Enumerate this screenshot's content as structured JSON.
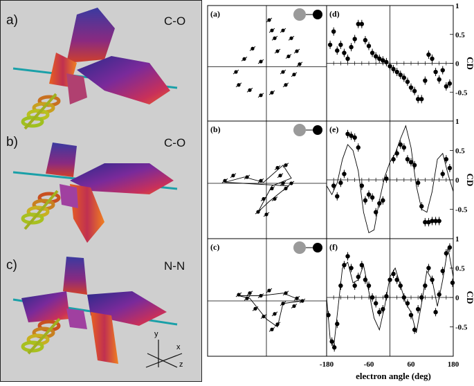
{
  "left_panels": [
    {
      "letter": "a)",
      "molecule": "C-O"
    },
    {
      "letter": "b)",
      "molecule": "C-O"
    },
    {
      "letter": "c)",
      "molecule": "N-N"
    }
  ],
  "axes_glyph": {
    "y": "y",
    "x": "x",
    "z": "z"
  },
  "right_panels": {
    "polar_labels": [
      "(a)",
      "(b)",
      "(c)"
    ],
    "cd_labels": [
      "(d)",
      "(e)",
      "(f)"
    ],
    "cd_axis_title": "CD",
    "x_axis_title": "electron angle (deg)",
    "x_ticks": [
      "-180",
      "-60",
      "60",
      "180"
    ],
    "y_ticks": [
      "1",
      "0.5",
      "0",
      "-0.5"
    ]
  },
  "chart_data": [
    {
      "panel": "(d)",
      "type": "scatter",
      "xlabel": "electron angle (deg)",
      "ylabel": "CD",
      "xlim": [
        -180,
        180
      ],
      "ylim": [
        -1,
        1
      ],
      "series": [
        {
          "points": [
            [
              -170,
              0.32
            ],
            [
              -160,
              0.55
            ],
            [
              -150,
              0.22
            ],
            [
              -140,
              0.32
            ],
            [
              -130,
              0.18
            ],
            [
              -120,
              0.08
            ],
            [
              -110,
              0.28
            ],
            [
              -100,
              0.42
            ],
            [
              -90,
              0.68
            ],
            [
              -80,
              0.68
            ],
            [
              -70,
              0.4
            ],
            [
              -60,
              0.3
            ],
            [
              -50,
              0.18
            ],
            [
              -40,
              0.12
            ],
            [
              -30,
              0.08
            ],
            [
              -20,
              0.05
            ],
            [
              -10,
              0.02
            ],
            [
              0,
              -0.05
            ],
            [
              10,
              -0.1
            ],
            [
              20,
              -0.15
            ],
            [
              30,
              -0.2
            ],
            [
              40,
              -0.25
            ],
            [
              50,
              -0.32
            ],
            [
              60,
              -0.42
            ],
            [
              70,
              -0.48
            ],
            [
              80,
              -0.62
            ],
            [
              90,
              -0.62
            ],
            [
              100,
              -0.3
            ],
            [
              110,
              0.15
            ],
            [
              120,
              0.08
            ],
            [
              130,
              -0.15
            ],
            [
              140,
              -0.28
            ],
            [
              150,
              -0.12
            ],
            [
              160,
              -0.4
            ],
            [
              170,
              -0.35
            ]
          ]
        },
        {
          "name": "",
          "points": []
        }
      ]
    },
    {
      "panel": "(e)",
      "type": "scatter",
      "xlabel": "electron angle (deg)",
      "ylabel": "CD",
      "xlim": [
        -180,
        180
      ],
      "ylim": [
        -1,
        1
      ],
      "series": [
        {
          "points": [
            [
              -160,
              -0.1
            ],
            [
              -150,
              -0.28
            ],
            [
              -140,
              -0.05
            ],
            [
              -130,
              0.1
            ],
            [
              -120,
              0.78
            ],
            [
              -110,
              0.75
            ],
            [
              -100,
              0.72
            ],
            [
              -90,
              0.55
            ],
            [
              -80,
              -0.1
            ],
            [
              -70,
              -0.35
            ],
            [
              -60,
              -0.25
            ],
            [
              -50,
              -0.3
            ],
            [
              -40,
              -0.55
            ],
            [
              -30,
              -0.4
            ],
            [
              -20,
              -0.35
            ],
            [
              -10,
              0.02
            ],
            [
              10,
              0.35
            ],
            [
              20,
              0.45
            ],
            [
              30,
              0.6
            ],
            [
              40,
              0.55
            ],
            [
              50,
              0.35
            ],
            [
              60,
              0.3
            ],
            [
              70,
              0.25
            ],
            [
              80,
              -0.05
            ],
            [
              90,
              -0.45
            ],
            [
              100,
              -0.72
            ],
            [
              110,
              -0.72
            ],
            [
              120,
              -0.7
            ],
            [
              130,
              -0.7
            ],
            [
              140,
              -0.7
            ],
            [
              150,
              0.1
            ],
            [
              160,
              0.35
            ],
            [
              170,
              0.2
            ]
          ]
        },
        {
          "points": [
            [
              -180,
              -0.1
            ],
            [
              -165,
              -0.25
            ],
            [
              -150,
              -0.05
            ],
            [
              -135,
              0.35
            ],
            [
              -120,
              0.6
            ],
            [
              -105,
              0.5
            ],
            [
              -90,
              0.15
            ],
            [
              -75,
              -0.55
            ],
            [
              -60,
              -0.9
            ],
            [
              -45,
              -0.85
            ],
            [
              -30,
              -0.35
            ],
            [
              -15,
              0.05
            ],
            [
              0,
              0.3
            ],
            [
              15,
              0.45
            ],
            [
              30,
              0.7
            ],
            [
              45,
              0.92
            ],
            [
              60,
              0.55
            ],
            [
              75,
              -0.1
            ],
            [
              90,
              -0.5
            ],
            [
              105,
              -0.55
            ],
            [
              120,
              -0.2
            ],
            [
              135,
              0.35
            ],
            [
              150,
              0.45
            ],
            [
              165,
              0.1
            ],
            [
              180,
              -0.2
            ]
          ]
        }
      ]
    },
    {
      "panel": "(f)",
      "type": "scatter",
      "xlabel": "electron angle (deg)",
      "ylabel": "CD",
      "xlim": [
        -180,
        180
      ],
      "ylim": [
        -1,
        1
      ],
      "series": [
        {
          "points": [
            [
              -175,
              -0.3
            ],
            [
              -165,
              -0.75
            ],
            [
              -158,
              -0.85
            ],
            [
              -150,
              -0.45
            ],
            [
              -140,
              0.2
            ],
            [
              -130,
              0.55
            ],
            [
              -120,
              0.7
            ],
            [
              -110,
              0.5
            ],
            [
              -100,
              0.2
            ],
            [
              -90,
              0.35
            ],
            [
              -80,
              0.55
            ],
            [
              -70,
              0.3
            ],
            [
              -60,
              0.2
            ],
            [
              -50,
              0.0
            ],
            [
              -40,
              -0.1
            ],
            [
              -30,
              -0.25
            ],
            [
              -20,
              -0.2
            ],
            [
              -10,
              0.02
            ],
            [
              0,
              0.3
            ],
            [
              10,
              0.4
            ],
            [
              20,
              0.3
            ],
            [
              30,
              0.2
            ],
            [
              40,
              0.0
            ],
            [
              50,
              -0.1
            ],
            [
              60,
              -0.3
            ],
            [
              70,
              -0.55
            ],
            [
              80,
              -0.2
            ],
            [
              90,
              0.0
            ],
            [
              100,
              0.2
            ],
            [
              110,
              0.5
            ],
            [
              120,
              0.3
            ],
            [
              130,
              -0.25
            ],
            [
              140,
              0.05
            ],
            [
              150,
              0.45
            ],
            [
              160,
              0.75
            ],
            [
              170,
              0.85
            ],
            [
              178,
              0.25
            ]
          ]
        },
        {
          "points": [
            [
              -180,
              0.0
            ],
            [
              -170,
              -0.7
            ],
            [
              -160,
              -0.85
            ],
            [
              -150,
              -0.3
            ],
            [
              -135,
              0.5
            ],
            [
              -120,
              0.6
            ],
            [
              -105,
              0.25
            ],
            [
              -90,
              0.3
            ],
            [
              -75,
              0.55
            ],
            [
              -60,
              0.1
            ],
            [
              -45,
              -0.35
            ],
            [
              -30,
              -0.55
            ],
            [
              -15,
              -0.15
            ],
            [
              0,
              0.35
            ],
            [
              15,
              0.5
            ],
            [
              30,
              0.2
            ],
            [
              45,
              -0.1
            ],
            [
              60,
              -0.25
            ],
            [
              75,
              -0.6
            ],
            [
              90,
              -0.1
            ],
            [
              105,
              0.45
            ],
            [
              120,
              0.3
            ],
            [
              135,
              -0.15
            ],
            [
              150,
              0.3
            ],
            [
              165,
              0.85
            ],
            [
              180,
              0.35
            ]
          ]
        }
      ]
    },
    {
      "panel": "(a)",
      "type": "scatter",
      "note": "polar",
      "series": [
        {
          "points": [
            [
              0.05,
              0.9
            ],
            [
              0.1,
              0.7
            ],
            [
              0.15,
              0.55
            ],
            [
              0.3,
              0.7
            ],
            [
              0.45,
              0.55
            ],
            [
              0.55,
              0.3
            ],
            [
              0.6,
              0.05
            ],
            [
              0.5,
              -0.15
            ],
            [
              0.35,
              -0.35
            ],
            [
              0.1,
              -0.5
            ],
            [
              -0.1,
              -0.55
            ],
            [
              -0.3,
              -0.45
            ],
            [
              -0.5,
              -0.35
            ],
            [
              -0.55,
              -0.1
            ],
            [
              -0.4,
              0.15
            ],
            [
              -0.25,
              0.35
            ],
            [
              -0.1,
              0.1
            ],
            [
              0.2,
              0.3
            ],
            [
              0.4,
              0.2
            ],
            [
              0.3,
              -0.1
            ]
          ]
        }
      ]
    },
    {
      "panel": "(b)",
      "type": "scatter",
      "note": "polar",
      "series": [
        {
          "points": [
            [
              -0.75,
              0.05
            ],
            [
              -0.6,
              0.15
            ],
            [
              -0.35,
              0.12
            ],
            [
              -0.1,
              0.05
            ],
            [
              0.2,
              0.3
            ],
            [
              0.35,
              0.35
            ],
            [
              0.25,
              0.15
            ],
            [
              0.1,
              -0.1
            ],
            [
              -0.05,
              -0.3
            ],
            [
              -0.15,
              -0.55
            ],
            [
              0.0,
              -0.6
            ],
            [
              0.15,
              -0.3
            ],
            [
              0.35,
              -0.1
            ],
            [
              0.45,
              0.0
            ],
            [
              0.3,
              0.0
            ]
          ]
        },
        {
          "points": [
            [
              -0.75,
              0.02
            ],
            [
              -0.4,
              0.12
            ],
            [
              -0.05,
              0.02
            ],
            [
              0.3,
              0.35
            ],
            [
              0.45,
              0.1
            ],
            [
              0.1,
              -0.05
            ],
            [
              -0.15,
              -0.55
            ],
            [
              0.05,
              -0.35
            ],
            [
              0.4,
              -0.05
            ]
          ]
        }
      ]
    },
    {
      "panel": "(c)",
      "type": "scatter",
      "note": "polar",
      "series": [
        {
          "points": [
            [
              -0.5,
              0.12
            ],
            [
              -0.3,
              0.15
            ],
            [
              -0.1,
              0.1
            ],
            [
              0.05,
              0.2
            ],
            [
              0.35,
              0.15
            ],
            [
              0.55,
              0.05
            ],
            [
              0.65,
              0.0
            ],
            [
              0.5,
              -0.1
            ],
            [
              0.3,
              -0.05
            ],
            [
              0.15,
              -0.25
            ],
            [
              0.2,
              -0.45
            ],
            [
              0.1,
              -0.55
            ],
            [
              -0.05,
              -0.3
            ],
            [
              -0.2,
              -0.15
            ],
            [
              -0.35,
              0.05
            ]
          ]
        },
        {
          "points": [
            [
              -0.5,
              0.1
            ],
            [
              -0.1,
              0.1
            ],
            [
              0.3,
              0.15
            ],
            [
              0.65,
              0.0
            ],
            [
              0.3,
              -0.05
            ],
            [
              0.2,
              -0.5
            ],
            [
              0.0,
              -0.35
            ],
            [
              -0.3,
              0.05
            ]
          ]
        }
      ]
    }
  ]
}
